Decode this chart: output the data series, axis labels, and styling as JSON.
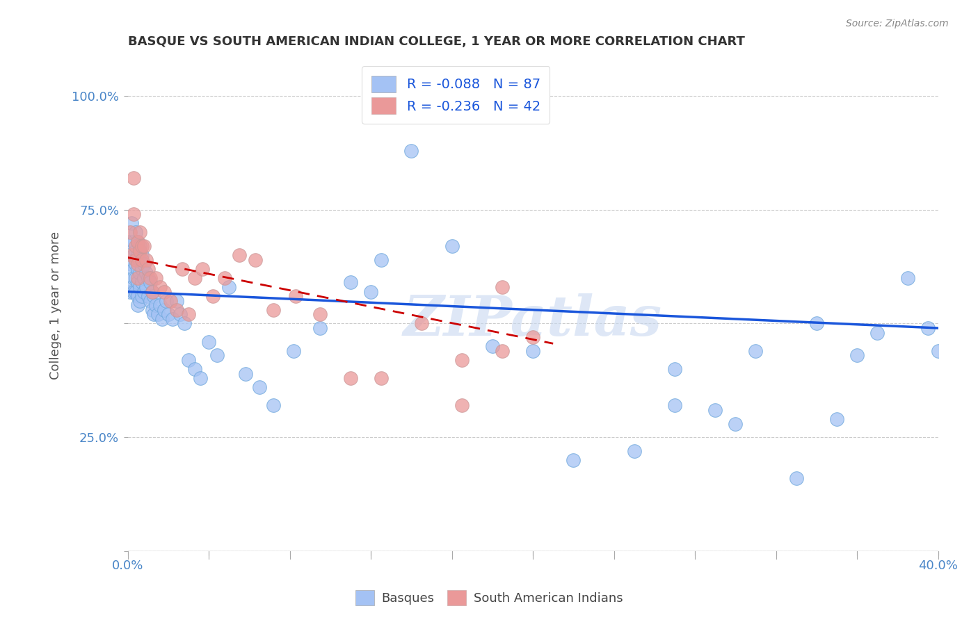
{
  "title": "BASQUE VS SOUTH AMERICAN INDIAN COLLEGE, 1 YEAR OR MORE CORRELATION CHART",
  "source": "Source: ZipAtlas.com",
  "ylabel": "College, 1 year or more",
  "xlim": [
    0.0,
    0.4
  ],
  "ylim": [
    0.0,
    1.08
  ],
  "basque_R": -0.088,
  "basque_N": 87,
  "sam_indian_R": -0.236,
  "sam_indian_N": 42,
  "basque_color": "#a4c2f4",
  "sam_indian_color": "#ea9999",
  "basque_line_color": "#1a56db",
  "sam_indian_line_color": "#cc0000",
  "watermark": "ZIPatlas",
  "legend_label_1": "Basques",
  "legend_label_2": "South American Indians",
  "basque_x": [
    0.001,
    0.001,
    0.002,
    0.002,
    0.002,
    0.003,
    0.003,
    0.003,
    0.003,
    0.003,
    0.004,
    0.004,
    0.004,
    0.004,
    0.004,
    0.005,
    0.005,
    0.005,
    0.005,
    0.005,
    0.005,
    0.006,
    0.006,
    0.006,
    0.006,
    0.006,
    0.007,
    0.007,
    0.007,
    0.007,
    0.008,
    0.008,
    0.008,
    0.009,
    0.009,
    0.01,
    0.01,
    0.011,
    0.011,
    0.012,
    0.012,
    0.013,
    0.013,
    0.014,
    0.015,
    0.016,
    0.017,
    0.018,
    0.019,
    0.02,
    0.022,
    0.024,
    0.026,
    0.028,
    0.03,
    0.033,
    0.036,
    0.04,
    0.044,
    0.05,
    0.058,
    0.065,
    0.072,
    0.082,
    0.095,
    0.11,
    0.125,
    0.14,
    0.16,
    0.18,
    0.2,
    0.22,
    0.25,
    0.27,
    0.3,
    0.33,
    0.35,
    0.37,
    0.385,
    0.395,
    0.4,
    0.12,
    0.27,
    0.29,
    0.31,
    0.34,
    0.36
  ],
  "basque_y": [
    0.57,
    0.68,
    0.72,
    0.63,
    0.58,
    0.68,
    0.65,
    0.62,
    0.6,
    0.57,
    0.7,
    0.66,
    0.63,
    0.6,
    0.57,
    0.68,
    0.65,
    0.62,
    0.59,
    0.56,
    0.54,
    0.67,
    0.64,
    0.61,
    0.58,
    0.55,
    0.65,
    0.62,
    0.59,
    0.56,
    0.63,
    0.6,
    0.57,
    0.61,
    0.58,
    0.6,
    0.56,
    0.59,
    0.55,
    0.57,
    0.53,
    0.56,
    0.52,
    0.54,
    0.52,
    0.54,
    0.51,
    0.53,
    0.55,
    0.52,
    0.51,
    0.55,
    0.52,
    0.5,
    0.42,
    0.4,
    0.38,
    0.46,
    0.43,
    0.58,
    0.39,
    0.36,
    0.32,
    0.44,
    0.49,
    0.59,
    0.64,
    0.88,
    0.67,
    0.45,
    0.44,
    0.2,
    0.22,
    0.32,
    0.28,
    0.16,
    0.29,
    0.48,
    0.6,
    0.49,
    0.44,
    0.57,
    0.4,
    0.31,
    0.44,
    0.5,
    0.43
  ],
  "sam_x": [
    0.001,
    0.002,
    0.003,
    0.003,
    0.004,
    0.004,
    0.005,
    0.005,
    0.005,
    0.006,
    0.006,
    0.007,
    0.007,
    0.008,
    0.009,
    0.01,
    0.011,
    0.012,
    0.014,
    0.016,
    0.018,
    0.021,
    0.024,
    0.027,
    0.03,
    0.033,
    0.037,
    0.042,
    0.048,
    0.055,
    0.063,
    0.072,
    0.083,
    0.095,
    0.11,
    0.125,
    0.145,
    0.165,
    0.185,
    0.2,
    0.165,
    0.185
  ],
  "sam_y": [
    0.7,
    0.65,
    0.74,
    0.82,
    0.67,
    0.64,
    0.68,
    0.63,
    0.6,
    0.7,
    0.66,
    0.67,
    0.64,
    0.67,
    0.64,
    0.62,
    0.6,
    0.57,
    0.6,
    0.58,
    0.57,
    0.55,
    0.53,
    0.62,
    0.52,
    0.6,
    0.62,
    0.56,
    0.6,
    0.65,
    0.64,
    0.53,
    0.56,
    0.52,
    0.38,
    0.38,
    0.5,
    0.42,
    0.58,
    0.47,
    0.32,
    0.44
  ]
}
